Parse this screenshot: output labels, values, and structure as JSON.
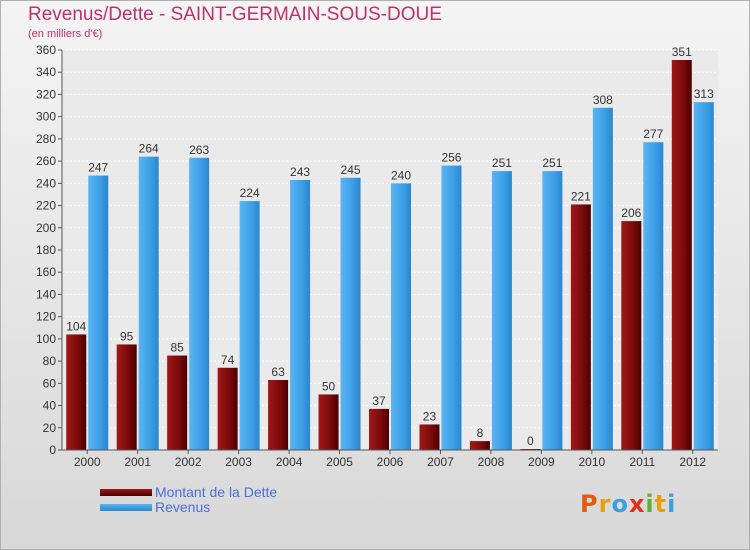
{
  "header": {
    "title": "Revenus/Dette - SAINT-GERMAIN-SOUS-DOUE",
    "subtitle": "(en milliers d'€)"
  },
  "legend": {
    "items": [
      {
        "label": "Montant de la Dette",
        "color": "#7a0a0a"
      },
      {
        "label": "Revenus",
        "color": "#3c9ee5"
      }
    ]
  },
  "logo": {
    "text": "Proxiti",
    "letters": [
      {
        "ch": "P",
        "color": "#e05a10"
      },
      {
        "ch": "r",
        "color": "#e8a010"
      },
      {
        "ch": "o",
        "color": "#3aa0e0"
      },
      {
        "ch": "x",
        "color": "#e03020"
      },
      {
        "ch": "i",
        "color": "#60b030"
      },
      {
        "ch": "t",
        "color": "#e8a010"
      },
      {
        "ch": "i",
        "color": "#3aa0e0"
      }
    ]
  },
  "chart_data": {
    "type": "bar",
    "categories": [
      "2000",
      "2001",
      "2002",
      "2003",
      "2004",
      "2005",
      "2006",
      "2007",
      "2008",
      "2009",
      "2010",
      "2011",
      "2012"
    ],
    "series": [
      {
        "name": "Montant de la Dette",
        "color": "#7a0a0a",
        "values": [
          104,
          95,
          85,
          74,
          63,
          50,
          37,
          23,
          8,
          0,
          221,
          206,
          351
        ]
      },
      {
        "name": "Revenus",
        "color": "#3c9ee5",
        "values": [
          247,
          264,
          263,
          224,
          243,
          245,
          240,
          256,
          251,
          251,
          308,
          277,
          313
        ]
      }
    ],
    "ylim": [
      0,
      360
    ],
    "yticks": [
      "0",
      "20",
      "40",
      "60",
      "80",
      "100",
      "120",
      "140",
      "160",
      "180",
      "200",
      "220",
      "240",
      "260",
      "280",
      "300",
      "320",
      "340",
      "360"
    ],
    "grid": true
  }
}
